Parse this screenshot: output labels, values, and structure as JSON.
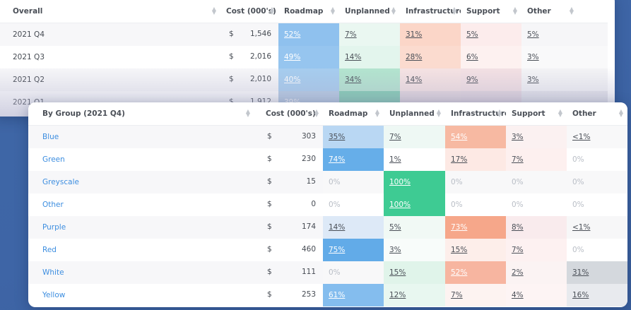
{
  "overall_table": {
    "columns": [
      "Overall",
      "Cost (000's)",
      "Roadmap",
      "Unplanned",
      "Infrastructure",
      "Support",
      "Other"
    ],
    "rows": [
      {
        "label": "2021 Q4",
        "currency": "$",
        "cost": "1,546",
        "cells": [
          "52%",
          "7%",
          "31%",
          "5%",
          "5%"
        ]
      },
      {
        "label": "2021 Q3",
        "currency": "$",
        "cost": "2,016",
        "cells": [
          "49%",
          "14%",
          "28%",
          "6%",
          "3%"
        ]
      },
      {
        "label": "2021 Q2",
        "currency": "$",
        "cost": "2,010",
        "cells": [
          "40%",
          "34%",
          "14%",
          "9%",
          "3%"
        ]
      },
      {
        "label": "2021 Q1",
        "currency": "$",
        "cost": "1,912",
        "cells": [
          "39%",
          "",
          "",
          "",
          ""
        ]
      }
    ],
    "cell_colors": [
      [
        "#8fc1ee",
        "#eaf7f1",
        "#fbd6c8",
        "#fcecec",
        "#f6f6f8"
      ],
      [
        "#96c5ef",
        "#e3f5ed",
        "#fbdbcf",
        "#fdf1f0",
        "#f9f9fa"
      ],
      [
        "#a6cdef",
        "#b3e5cf",
        "#f6e3e3",
        "#f4e1e4",
        "#f4f4f6"
      ],
      [
        "#b4cbe4",
        "#7ccdb0",
        "#e6d9df",
        "#e4d7df",
        "#e6e6ec"
      ]
    ],
    "light_text": [
      [
        true,
        false,
        false,
        false,
        false
      ],
      [
        true,
        false,
        false,
        false,
        false
      ],
      [
        true,
        false,
        false,
        false,
        false
      ],
      [
        true,
        true,
        false,
        false,
        false
      ]
    ]
  },
  "group_table": {
    "columns": [
      "By Group (2021 Q4)",
      "Cost (000's)",
      "Roadmap",
      "Unplanned",
      "Infrastructure",
      "Support",
      "Other"
    ],
    "rows": [
      {
        "label": "Blue",
        "currency": "$",
        "cost": "303",
        "cells": [
          "35%",
          "7%",
          "54%",
          "3%",
          "<1%"
        ]
      },
      {
        "label": "Green",
        "currency": "$",
        "cost": "230",
        "cells": [
          "74%",
          "1%",
          "17%",
          "7%",
          "0%"
        ]
      },
      {
        "label": "Greyscale",
        "currency": "$",
        "cost": "15",
        "cells": [
          "0%",
          "100%",
          "0%",
          "0%",
          "0%"
        ]
      },
      {
        "label": "Other",
        "currency": "$",
        "cost": "0",
        "cells": [
          "0%",
          "100%",
          "0%",
          "0%",
          "0%"
        ]
      },
      {
        "label": "Purple",
        "currency": "$",
        "cost": "174",
        "cells": [
          "14%",
          "5%",
          "73%",
          "8%",
          "<1%"
        ]
      },
      {
        "label": "Red",
        "currency": "$",
        "cost": "460",
        "cells": [
          "75%",
          "3%",
          "15%",
          "7%",
          "0%"
        ]
      },
      {
        "label": "White",
        "currency": "$",
        "cost": "111",
        "cells": [
          "0%",
          "15%",
          "52%",
          "2%",
          "31%"
        ]
      },
      {
        "label": "Yellow",
        "currency": "$",
        "cost": "253",
        "cells": [
          "61%",
          "12%",
          "7%",
          "4%",
          "16%"
        ]
      }
    ],
    "cell_colors": [
      [
        "#b9d7f3",
        "#eef8f4",
        "#f7b9a2",
        "#fbf1f1",
        "#f8f8f9"
      ],
      [
        "#66aee9",
        "#ffffff",
        "#fde9e4",
        "#fdf0ef",
        "#ffffff"
      ],
      [
        "#f8f8f9",
        "#3ecb93",
        "#f8f8f9",
        "#f8f8f9",
        "#f8f8f9"
      ],
      [
        "#ffffff",
        "#3ecb93",
        "#ffffff",
        "#ffffff",
        "#ffffff"
      ],
      [
        "#dde9f7",
        "#f1f9f5",
        "#f6a78a",
        "#f9ebed",
        "#f7f7f8"
      ],
      [
        "#62abe8",
        "#f8fcfa",
        "#fdeeea",
        "#fdf1f1",
        "#ffffff"
      ],
      [
        "#f8f8f9",
        "#e0f4ea",
        "#f7b5a0",
        "#fbf3f3",
        "#d4d8dd"
      ],
      [
        "#84bdee",
        "#e8f7f0",
        "#fdf3f1",
        "#fdf4f4",
        "#e8eaee"
      ]
    ],
    "light_text": [
      [
        false,
        false,
        true,
        false,
        false
      ],
      [
        true,
        false,
        false,
        false,
        false
      ],
      [
        false,
        true,
        false,
        false,
        false
      ],
      [
        false,
        true,
        false,
        false,
        false
      ],
      [
        false,
        false,
        true,
        false,
        false
      ],
      [
        true,
        false,
        false,
        false,
        false
      ],
      [
        false,
        false,
        true,
        false,
        false
      ],
      [
        true,
        false,
        false,
        false,
        false
      ]
    ]
  },
  "icons": {
    "sort": "sort-updown-icon"
  }
}
